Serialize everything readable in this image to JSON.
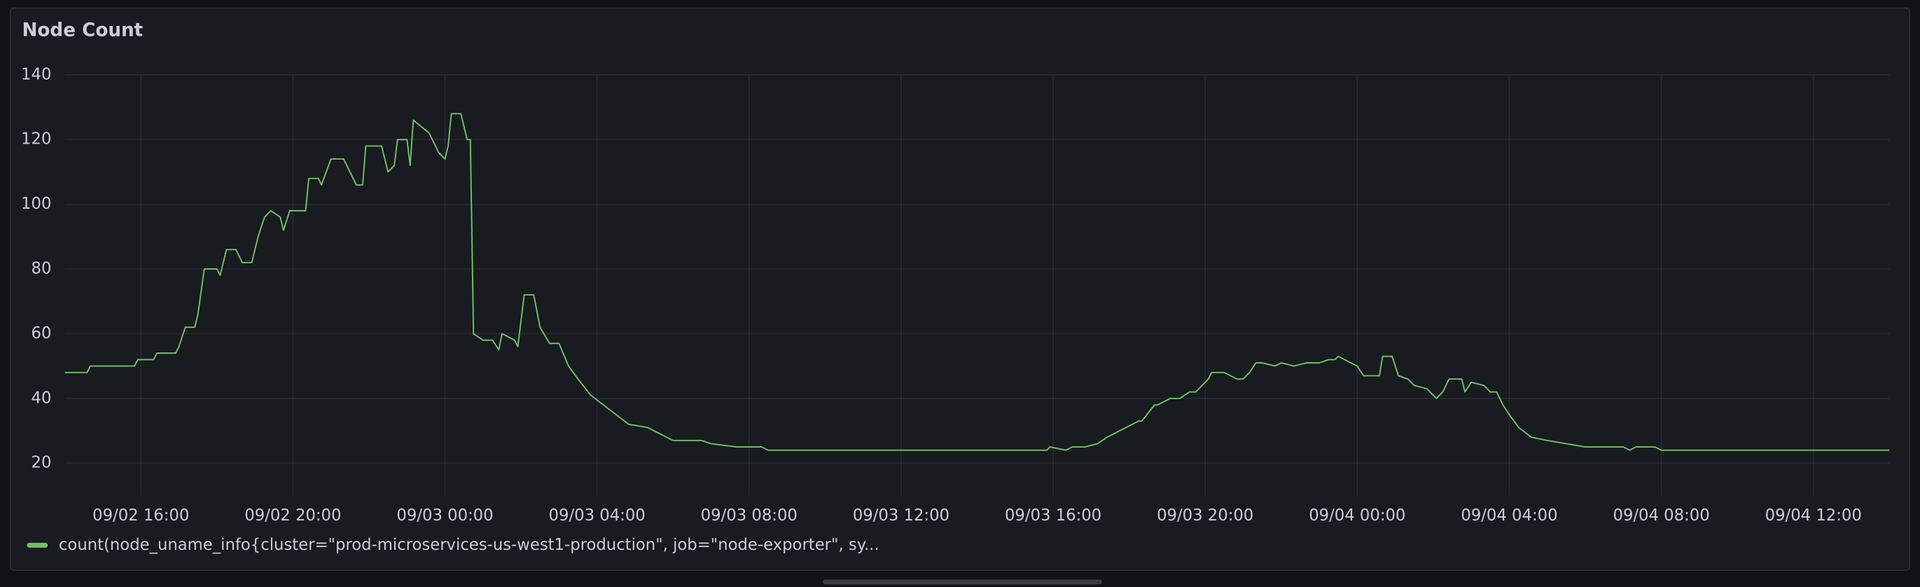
{
  "chart_data": {
    "type": "line",
    "title": "Node Count",
    "x": [
      "09/02 14:00",
      "09/02 14:35",
      "09/02 14:40",
      "09/02 15:50",
      "09/02 15:55",
      "09/02 16:20",
      "09/02 16:25",
      "09/02 16:55",
      "09/02 17:00",
      "09/02 17:10",
      "09/02 17:25",
      "09/02 17:30",
      "09/02 17:40",
      "09/02 18:00",
      "09/02 18:05",
      "09/02 18:15",
      "09/02 18:30",
      "09/02 18:40",
      "09/02 18:55",
      "09/02 19:05",
      "09/02 19:15",
      "09/02 19:25",
      "09/02 19:40",
      "09/02 19:45",
      "09/02 19:55",
      "09/02 20:20",
      "09/02 20:25",
      "09/02 20:40",
      "09/02 20:45",
      "09/02 21:00",
      "09/02 21:20",
      "09/02 21:30",
      "09/02 21:40",
      "09/02 21:50",
      "09/02 21:55",
      "09/02 22:20",
      "09/02 22:30",
      "09/02 22:40",
      "09/02 22:45",
      "09/02 23:00",
      "09/02 23:05",
      "09/02 23:10",
      "09/02 23:35",
      "09/02 23:50",
      "09/03 00:00",
      "09/03 00:05",
      "09/03 00:10",
      "09/03 00:25",
      "09/03 00:35",
      "09/03 00:40",
      "09/03 00:45",
      "09/03 01:00",
      "09/03 01:15",
      "09/03 01:25",
      "09/03 01:30",
      "09/03 01:50",
      "09/03 01:55",
      "09/03 02:05",
      "09/03 02:20",
      "09/03 02:30",
      "09/03 02:45",
      "09/03 03:00",
      "09/03 03:15",
      "09/03 03:30",
      "09/03 03:50",
      "09/03 04:10",
      "09/03 04:30",
      "09/03 04:50",
      "09/03 05:20",
      "09/03 05:40",
      "09/03 06:00",
      "09/03 06:45",
      "09/03 07:00",
      "09/03 07:40",
      "09/03 08:20",
      "09/03 08:30",
      "09/03 15:50",
      "09/03 15:55",
      "09/03 16:20",
      "09/03 16:30",
      "09/03 16:50",
      "09/03 17:10",
      "09/03 17:25",
      "09/03 17:45",
      "09/03 18:15",
      "09/03 18:20",
      "09/03 18:40",
      "09/03 18:45",
      "09/03 19:05",
      "09/03 19:20",
      "09/03 19:35",
      "09/03 19:45",
      "09/03 20:05",
      "09/03 20:10",
      "09/03 20:30",
      "09/03 20:50",
      "09/03 21:00",
      "09/03 21:10",
      "09/03 21:20",
      "09/03 21:30",
      "09/03 21:50",
      "09/03 22:00",
      "09/03 22:20",
      "09/03 22:40",
      "09/03 23:00",
      "09/03 23:15",
      "09/03 23:25",
      "09/03 23:30",
      "09/03 23:40",
      "09/04 00:00",
      "09/04 00:10",
      "09/04 00:35",
      "09/04 00:40",
      "09/04 00:55",
      "09/04 01:05",
      "09/04 01:20",
      "09/04 01:30",
      "09/04 01:50",
      "09/04 02:05",
      "09/04 02:15",
      "09/04 02:25",
      "09/04 02:45",
      "09/04 02:50",
      "09/04 03:00",
      "09/04 03:20",
      "09/04 03:30",
      "09/04 03:40",
      "09/04 03:50",
      "09/04 04:00",
      "09/04 04:15",
      "09/04 04:35",
      "09/04 05:00",
      "09/04 05:30",
      "09/04 06:00",
      "09/04 07:00",
      "09/04 07:10",
      "09/04 07:20",
      "09/04 07:50",
      "09/04 08:00",
      "09/04 14:00"
    ],
    "series": [
      {
        "name": "count(node_uname_info{cluster=\"prod-microservices-us-west1-production\", job=\"node-exporter\", sy...",
        "color": "#73bf69",
        "values": [
          48,
          48,
          50,
          50,
          52,
          52,
          54,
          54,
          56,
          62,
          62,
          66,
          80,
          80,
          78,
          86,
          86,
          82,
          82,
          90,
          96,
          98,
          96,
          92,
          98,
          98,
          108,
          108,
          106,
          114,
          114,
          110,
          106,
          106,
          118,
          118,
          110,
          112,
          120,
          120,
          112,
          126,
          122,
          116,
          114,
          118,
          128,
          128,
          120,
          120,
          60,
          58,
          58,
          55,
          60,
          58,
          56,
          72,
          72,
          62,
          57,
          57,
          50,
          46,
          41,
          38,
          35,
          32,
          31,
          29,
          27,
          27,
          26,
          25,
          25,
          24,
          24,
          25,
          24,
          25,
          25,
          26,
          28,
          30,
          33,
          33,
          38,
          38,
          40,
          40,
          42,
          42,
          46,
          48,
          48,
          46,
          46,
          48,
          51,
          51,
          50,
          51,
          50,
          51,
          51,
          52,
          52,
          53,
          52,
          50,
          47,
          47,
          53,
          53,
          47,
          46,
          44,
          43,
          40,
          42,
          46,
          46,
          42,
          45,
          44,
          42,
          42,
          38,
          35,
          31,
          28,
          27,
          26,
          25,
          25,
          24,
          25,
          25,
          24,
          24
        ]
      }
    ],
    "xlim": [
      "09/02 14:00",
      "09/04 14:00"
    ],
    "xticks": [
      "09/02 16:00",
      "09/02 20:00",
      "09/03 00:00",
      "09/03 04:00",
      "09/03 08:00",
      "09/03 12:00",
      "09/03 16:00",
      "09/03 20:00",
      "09/04 00:00",
      "09/04 04:00",
      "09/04 08:00",
      "09/04 12:00"
    ],
    "ylim": [
      10,
      140
    ],
    "yticks": [
      20,
      40,
      60,
      80,
      100,
      120,
      140
    ],
    "grid": true,
    "legend": "bottom"
  }
}
